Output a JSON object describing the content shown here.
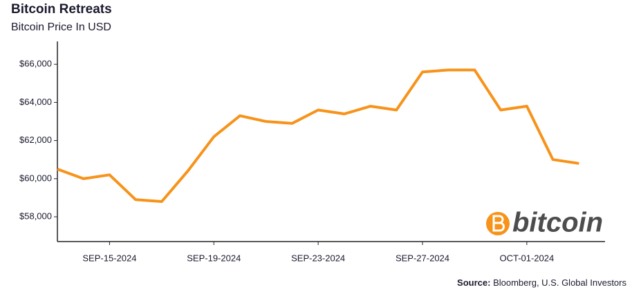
{
  "chart_data": {
    "type": "line",
    "title": "Bitcoin Retreats",
    "subtitle": "Bitcoin Price In USD",
    "x": [
      "2024-09-13",
      "2024-09-14",
      "2024-09-15",
      "2024-09-16",
      "2024-09-17",
      "2024-09-18",
      "2024-09-19",
      "2024-09-20",
      "2024-09-21",
      "2024-09-22",
      "2024-09-23",
      "2024-09-24",
      "2024-09-25",
      "2024-09-26",
      "2024-09-27",
      "2024-09-28",
      "2024-09-29",
      "2024-09-30",
      "2024-10-01",
      "2024-10-02",
      "2024-10-03"
    ],
    "series": [
      {
        "name": "Bitcoin",
        "color": "#f7931a",
        "values": [
          60500,
          60000,
          60200,
          58900,
          58800,
          60400,
          62200,
          63300,
          63000,
          62900,
          63600,
          63400,
          63800,
          63600,
          65600,
          65700,
          65700,
          63600,
          63800,
          61000,
          60800
        ]
      }
    ],
    "xlim": [
      "2024-09-13",
      "2024-10-04"
    ],
    "xticks": [
      {
        "value": "2024-09-15",
        "label": "SEP-15-2024"
      },
      {
        "value": "2024-09-19",
        "label": "SEP-19-2024"
      },
      {
        "value": "2024-09-23",
        "label": "SEP-23-2024"
      },
      {
        "value": "2024-09-27",
        "label": "SEP-27-2024"
      },
      {
        "value": "2024-10-01",
        "label": "OCT-01-2024"
      }
    ],
    "ylim": [
      56700,
      67200
    ],
    "yticks": [
      {
        "value": 58000,
        "label": "$58,000"
      },
      {
        "value": 60000,
        "label": "$60,000"
      },
      {
        "value": 62000,
        "label": "$62,000"
      },
      {
        "value": 64000,
        "label": "$64,000"
      },
      {
        "value": 66000,
        "label": "$66,000"
      }
    ],
    "grid": false,
    "logo_text": "bitcoin",
    "source_label": "Source:",
    "source": "Bloomberg, U.S. Global Investors"
  }
}
